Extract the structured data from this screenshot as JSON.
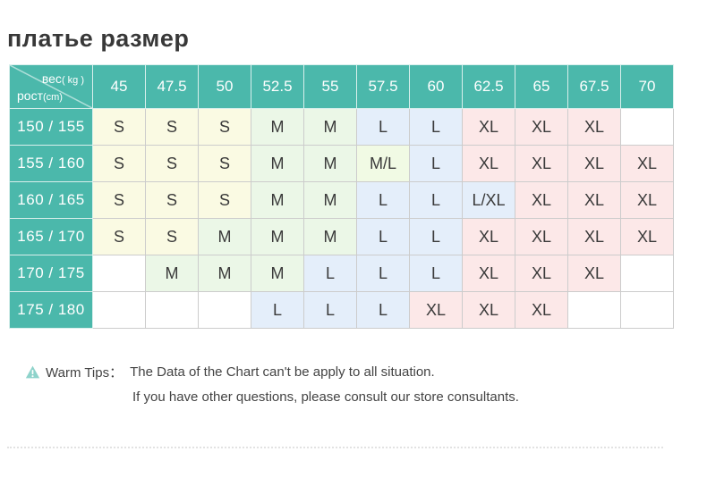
{
  "page_title": "платье размер",
  "chart_data": {
    "type": "table",
    "title": "платье размер",
    "x_axis_label": "вес ( kg )",
    "y_axis_label": "рост (cm)",
    "weight_columns_kg": [
      "45",
      "47.5",
      "50",
      "52.5",
      "55",
      "57.5",
      "60",
      "62.5",
      "65",
      "67.5",
      "70"
    ],
    "rows": [
      {
        "height_cm": "150 / 155",
        "sizes": [
          "S",
          "S",
          "S",
          "M",
          "M",
          "L",
          "L",
          "XL",
          "XL",
          "XL",
          ""
        ]
      },
      {
        "height_cm": "155 / 160",
        "sizes": [
          "S",
          "S",
          "S",
          "M",
          "M",
          "M/L",
          "L",
          "XL",
          "XL",
          "XL",
          "XL"
        ]
      },
      {
        "height_cm": "160 / 165",
        "sizes": [
          "S",
          "S",
          "S",
          "M",
          "M",
          "L",
          "L",
          "L/XL",
          "XL",
          "XL",
          "XL"
        ]
      },
      {
        "height_cm": "165 / 170",
        "sizes": [
          "S",
          "S",
          "M",
          "M",
          "M",
          "L",
          "L",
          "XL",
          "XL",
          "XL",
          "XL"
        ]
      },
      {
        "height_cm": "170 / 175",
        "sizes": [
          "",
          "M",
          "M",
          "M",
          "L",
          "L",
          "L",
          "XL",
          "XL",
          "XL",
          ""
        ]
      },
      {
        "height_cm": "175 / 180",
        "sizes": [
          "",
          "",
          "",
          "L",
          "L",
          "L",
          "XL",
          "XL",
          "XL",
          "",
          ""
        ]
      }
    ]
  },
  "table": {
    "corner": {
      "weight_label": "вес",
      "weight_unit": "( kg )",
      "height_label": "рост",
      "height_unit": "(cm)"
    },
    "header_bg": "#4bb8ab",
    "size_colors": {
      "S": "#fafae3",
      "M": "#ebf7e7",
      "M/L": "#f1fae4",
      "L": "#e4eefa",
      "L/XL": "#e4eefa",
      "XL": "#fce8e8",
      "": "#ffffff"
    }
  },
  "warm_tips": {
    "icon": "warning-triangle-icon",
    "icon_color": "#8ed3cb",
    "label": "Warm Tips：",
    "line1": "The Data of the Chart can't be apply to all situation.",
    "line2": "If you have other questions, please consult our store consultants."
  }
}
